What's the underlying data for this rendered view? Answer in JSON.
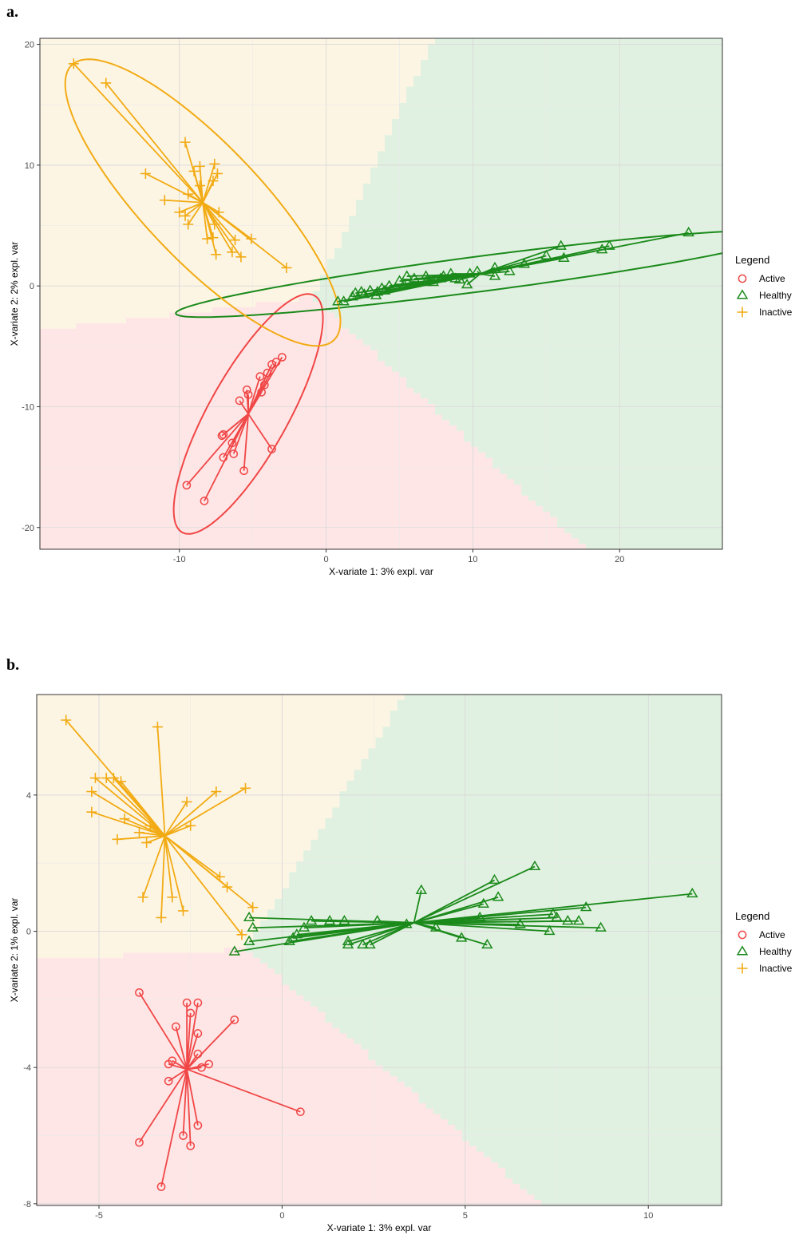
{
  "panels": [
    {
      "letter": "a.",
      "chart_data": {
        "type": "scatter",
        "xlabel": "X-variate 1: 3% expl. var",
        "ylabel": "X-variate 2: 2% expl. var",
        "xlim": [
          -19.5,
          27
        ],
        "ylim": [
          -21.8,
          20.5
        ],
        "xticks": [
          -10,
          0,
          10,
          20
        ],
        "yticks": [
          -20,
          -10,
          0,
          10,
          20
        ],
        "grid": true,
        "legend_position": "right",
        "legend_title": "Legend",
        "background_regions": true,
        "ellipses": true,
        "series": [
          {
            "name": "Active",
            "marker": "circle",
            "color": "#f04646",
            "region": "#ffe6e6",
            "centroid": [
              -5.3,
              -10.6
            ],
            "ellipse": {
              "a": 10.8,
              "b": 2.8,
              "angle": 66
            },
            "points": [
              [
                -3.4,
                -6.3
              ],
              [
                -3.0,
                -5.9
              ],
              [
                -3.7,
                -6.5
              ],
              [
                -4.0,
                -7.2
              ],
              [
                -4.5,
                -7.5
              ],
              [
                -4.2,
                -8.2
              ],
              [
                -4.4,
                -8.8
              ],
              [
                -5.4,
                -8.6
              ],
              [
                -5.3,
                -9.0
              ],
              [
                -5.9,
                -9.5
              ],
              [
                -7.0,
                -12.3
              ],
              [
                -7.1,
                -12.4
              ],
              [
                -6.4,
                -13.0
              ],
              [
                -6.3,
                -13.9
              ],
              [
                -7.0,
                -14.2
              ],
              [
                -5.6,
                -15.3
              ],
              [
                -3.7,
                -13.5
              ],
              [
                -9.5,
                -16.5
              ],
              [
                -8.3,
                -17.8
              ]
            ]
          },
          {
            "name": "Healthy",
            "marker": "triangle",
            "color": "#1b8a1b",
            "region": "#e1f1e1",
            "centroid": [
              10.5,
              1.0
            ],
            "ellipse": {
              "a": 21.0,
              "b": 1.45,
              "angle": 9.0
            },
            "points": [
              [
                24.7,
                4.4
              ],
              [
                19.3,
                3.3
              ],
              [
                18.8,
                3.0
              ],
              [
                16.0,
                3.3
              ],
              [
                16.2,
                2.3
              ],
              [
                15.0,
                2.5
              ],
              [
                13.5,
                1.8
              ],
              [
                12.5,
                1.2
              ],
              [
                11.5,
                1.5
              ],
              [
                11.5,
                0.8
              ],
              [
                10.3,
                1.2
              ],
              [
                9.8,
                1.0
              ],
              [
                8.5,
                1.0
              ],
              [
                8.8,
                0.6
              ],
              [
                7.8,
                0.6
              ],
              [
                7.3,
                0.3
              ],
              [
                6.8,
                0.8
              ],
              [
                6.0,
                0.6
              ],
              [
                5.5,
                0.8
              ],
              [
                5.0,
                0.4
              ],
              [
                4.3,
                0.0
              ],
              [
                3.8,
                -0.2
              ],
              [
                3.5,
                -0.5
              ],
              [
                3.0,
                -0.4
              ],
              [
                2.6,
                -0.7
              ],
              [
                2.0,
                -0.6
              ],
              [
                1.8,
                -0.9
              ],
              [
                1.2,
                -1.3
              ],
              [
                0.8,
                -1.3
              ],
              [
                9.6,
                0.1
              ],
              [
                6.8,
                0.3
              ],
              [
                4.0,
                -0.4
              ],
              [
                2.4,
                -0.5
              ],
              [
                3.4,
                -0.8
              ],
              [
                5.3,
                0.1
              ],
              [
                8.0,
                0.8
              ],
              [
                9.1,
                0.5
              ]
            ]
          },
          {
            "name": "Inactive",
            "marker": "plus",
            "color": "#f2ab14",
            "region": "#fdf5e4",
            "centroid": [
              -8.4,
              6.9
            ],
            "ellipse": {
              "a": 14.5,
              "b": 4.3,
              "angle": -53
            },
            "points": [
              [
                -17.2,
                18.4
              ],
              [
                -15.0,
                16.8
              ],
              [
                -9.6,
                11.9
              ],
              [
                -12.3,
                9.3
              ],
              [
                -9.0,
                9.5
              ],
              [
                -8.6,
                9.9
              ],
              [
                -7.6,
                10.1
              ],
              [
                -7.4,
                9.3
              ],
              [
                -7.7,
                8.7
              ],
              [
                -8.6,
                8.3
              ],
              [
                -9.4,
                7.6
              ],
              [
                -11.0,
                7.1
              ],
              [
                -10.0,
                6.1
              ],
              [
                -9.6,
                5.8
              ],
              [
                -9.4,
                5.1
              ],
              [
                -7.3,
                6.1
              ],
              [
                -7.6,
                5.1
              ],
              [
                -7.7,
                4.0
              ],
              [
                -8.1,
                3.9
              ],
              [
                -6.2,
                3.8
              ],
              [
                -5.1,
                3.9
              ],
              [
                -6.4,
                2.8
              ],
              [
                -7.5,
                2.6
              ],
              [
                -5.8,
                2.4
              ],
              [
                -2.7,
                1.5
              ]
            ]
          }
        ]
      }
    },
    {
      "letter": "b.",
      "chart_data": {
        "type": "scatter",
        "xlabel": "X-variate 1: 3% expl. var",
        "ylabel": "X-variate 2: 1% expl. var",
        "xlim": [
          -6.7,
          12.0
        ],
        "ylim": [
          -8.05,
          6.95
        ],
        "xticks": [
          -5,
          0,
          5,
          10
        ],
        "yticks": [
          -8,
          -4,
          0,
          4
        ],
        "grid": true,
        "legend_position": "right",
        "legend_title": "Legend",
        "background_regions": true,
        "ellipses": false,
        "series": [
          {
            "name": "Active",
            "marker": "circle",
            "color": "#f04646",
            "region": "#ffe6e6",
            "centroid": [
              -2.6,
              -4.05
            ],
            "points": [
              [
                -3.9,
                -1.8
              ],
              [
                -2.6,
                -2.1
              ],
              [
                -2.3,
                -2.1
              ],
              [
                -2.5,
                -2.4
              ],
              [
                -1.3,
                -2.6
              ],
              [
                -2.9,
                -2.8
              ],
              [
                -2.3,
                -3.0
              ],
              [
                -2.3,
                -3.6
              ],
              [
                -3.0,
                -3.8
              ],
              [
                -3.1,
                -3.9
              ],
              [
                -2.2,
                -4.0
              ],
              [
                -2.0,
                -3.9
              ],
              [
                -3.1,
                -4.4
              ],
              [
                0.5,
                -5.3
              ],
              [
                -3.9,
                -6.2
              ],
              [
                -2.3,
                -5.7
              ],
              [
                -2.7,
                -6.0
              ],
              [
                -2.5,
                -6.3
              ],
              [
                -3.3,
                -7.5
              ]
            ]
          },
          {
            "name": "Healthy",
            "marker": "triangle",
            "color": "#1b8a1b",
            "region": "#e1f1e1",
            "centroid": [
              3.6,
              0.25
            ],
            "points": [
              [
                11.2,
                1.1
              ],
              [
                6.9,
                1.9
              ],
              [
                5.8,
                1.5
              ],
              [
                5.9,
                1.0
              ],
              [
                3.8,
                1.2
              ],
              [
                5.5,
                0.8
              ],
              [
                8.3,
                0.7
              ],
              [
                7.4,
                0.5
              ],
              [
                7.8,
                0.3
              ],
              [
                7.5,
                0.4
              ],
              [
                8.1,
                0.3
              ],
              [
                8.7,
                0.1
              ],
              [
                6.5,
                0.2
              ],
              [
                7.3,
                0.0
              ],
              [
                5.4,
                0.4
              ],
              [
                4.2,
                0.1
              ],
              [
                4.9,
                -0.2
              ],
              [
                5.6,
                -0.4
              ],
              [
                3.4,
                0.2
              ],
              [
                2.6,
                0.3
              ],
              [
                1.7,
                0.3
              ],
              [
                1.3,
                0.3
              ],
              [
                0.8,
                0.3
              ],
              [
                0.6,
                0.1
              ],
              [
                0.4,
                -0.1
              ],
              [
                0.3,
                -0.2
              ],
              [
                0.2,
                -0.3
              ],
              [
                1.8,
                -0.3
              ],
              [
                1.8,
                -0.4
              ],
              [
                2.2,
                -0.4
              ],
              [
                2.4,
                -0.4
              ],
              [
                -0.8,
                0.1
              ],
              [
                -0.9,
                -0.3
              ],
              [
                -1.3,
                -0.6
              ],
              [
                -0.9,
                0.4
              ]
            ]
          },
          {
            "name": "Inactive",
            "marker": "plus",
            "color": "#f2ab14",
            "region": "#fdf5e4",
            "centroid": [
              -3.2,
              2.8
            ],
            "points": [
              [
                -5.9,
                6.2
              ],
              [
                -3.4,
                6.0
              ],
              [
                -5.1,
                4.5
              ],
              [
                -4.8,
                4.5
              ],
              [
                -4.6,
                4.5
              ],
              [
                -4.4,
                4.4
              ],
              [
                -5.2,
                4.1
              ],
              [
                -1.0,
                4.2
              ],
              [
                -1.8,
                4.1
              ],
              [
                -2.6,
                3.8
              ],
              [
                -5.2,
                3.5
              ],
              [
                -4.3,
                3.3
              ],
              [
                -3.6,
                3.1
              ],
              [
                -2.5,
                3.1
              ],
              [
                -3.9,
                2.9
              ],
              [
                -4.5,
                2.7
              ],
              [
                -3.7,
                2.6
              ],
              [
                -1.7,
                1.6
              ],
              [
                -1.5,
                1.3
              ],
              [
                -3.0,
                1.0
              ],
              [
                -3.8,
                1.0
              ],
              [
                -0.8,
                0.7
              ],
              [
                -2.7,
                0.6
              ],
              [
                -3.3,
                0.4
              ],
              [
                -1.1,
                -0.1
              ]
            ]
          }
        ]
      }
    }
  ]
}
